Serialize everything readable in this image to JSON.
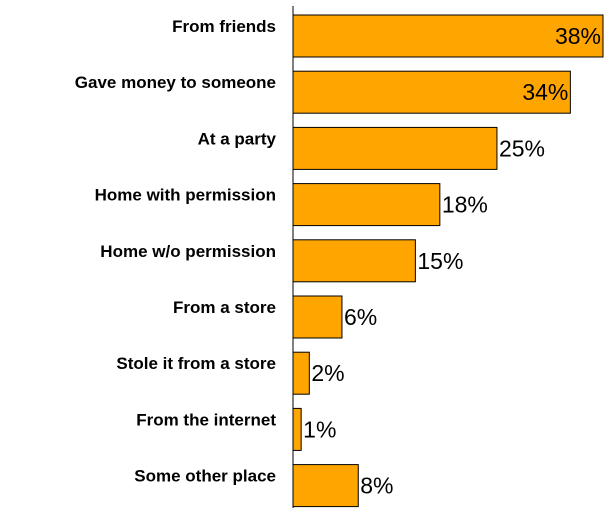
{
  "chart_data": {
    "type": "bar",
    "orientation": "horizontal",
    "title": "",
    "xlabel": "",
    "ylabel": "",
    "xlim": [
      0,
      38
    ],
    "grid": false,
    "legend": "none",
    "colors": {
      "bar": "#FFA500",
      "outline": "#000000"
    },
    "value_suffix": "%",
    "categories": [
      "From friends",
      "Gave money to someone",
      "At a party",
      "Home with permission",
      "Home w/o permission",
      "From a store",
      "Stole it from a store",
      "From the internet",
      "Some other place"
    ],
    "values": [
      38,
      34,
      25,
      18,
      15,
      6,
      2,
      1,
      8
    ],
    "value_labels": [
      "38%",
      "34%",
      "25%",
      "18%",
      "15%",
      "6%",
      "2%",
      "1%",
      "8%"
    ]
  }
}
